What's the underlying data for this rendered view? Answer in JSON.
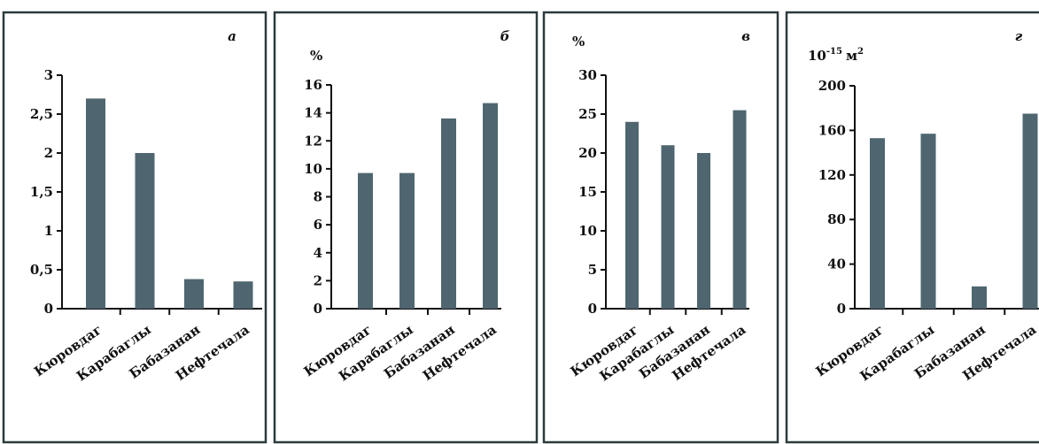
{
  "colors": {
    "bar": "#4f6670",
    "axis": "#111111",
    "frame": "#2b3a3d"
  },
  "chart_data": [
    {
      "type": "bar",
      "panel_letter": "а",
      "unit": "",
      "categories": [
        "Кюровдаг",
        "Карабаглы",
        "Бабазанан",
        "Нефтечала"
      ],
      "values": [
        2.7,
        2.0,
        0.38,
        0.35
      ],
      "ylim": [
        0,
        3
      ],
      "ytick_values": [
        0,
        0.5,
        1,
        1.5,
        2,
        2.5,
        3
      ],
      "ytick_labels": [
        "0",
        "0,5",
        "1",
        "1,5",
        "2",
        "2,5",
        "3"
      ],
      "grid": false
    },
    {
      "type": "bar",
      "panel_letter": "б",
      "unit": "%",
      "categories": [
        "Кюровдаг",
        "Карабаглы",
        "Бабазанан",
        "Нефтечала"
      ],
      "values": [
        9.7,
        9.7,
        13.6,
        14.7
      ],
      "ylim": [
        0,
        16
      ],
      "ytick_values": [
        0,
        2,
        4,
        6,
        8,
        10,
        12,
        14,
        16
      ],
      "ytick_labels": [
        "0",
        "2",
        "4",
        "6",
        "8",
        "10",
        "12",
        "14",
        "16"
      ],
      "grid": false
    },
    {
      "type": "bar",
      "panel_letter": "в",
      "unit": "%",
      "categories": [
        "Кюровдаг",
        "Карабаглы",
        "Бабазанан",
        "Нефтечала"
      ],
      "values": [
        24,
        21,
        20,
        25.5
      ],
      "ylim": [
        0,
        30
      ],
      "ytick_values": [
        0,
        5,
        10,
        15,
        20,
        25,
        30
      ],
      "ytick_labels": [
        "0",
        "5",
        "10",
        "15",
        "20",
        "25",
        "30"
      ],
      "grid": false
    },
    {
      "type": "bar",
      "panel_letter": "г",
      "unit": "10-15 м2",
      "unit_parts": {
        "base": "10",
        "exp": "-15",
        "unit": "м",
        "unit_exp": "2"
      },
      "categories": [
        "Кюровдаг",
        "Карабаглы",
        "Бабазанан",
        "Нефтечала"
      ],
      "values": [
        153,
        157,
        20,
        175
      ],
      "ylim": [
        0,
        200
      ],
      "ytick_values": [
        0,
        40,
        80,
        120,
        160,
        200
      ],
      "ytick_labels": [
        "0",
        "40",
        "80",
        "120",
        "160",
        "200"
      ],
      "grid": false
    }
  ]
}
